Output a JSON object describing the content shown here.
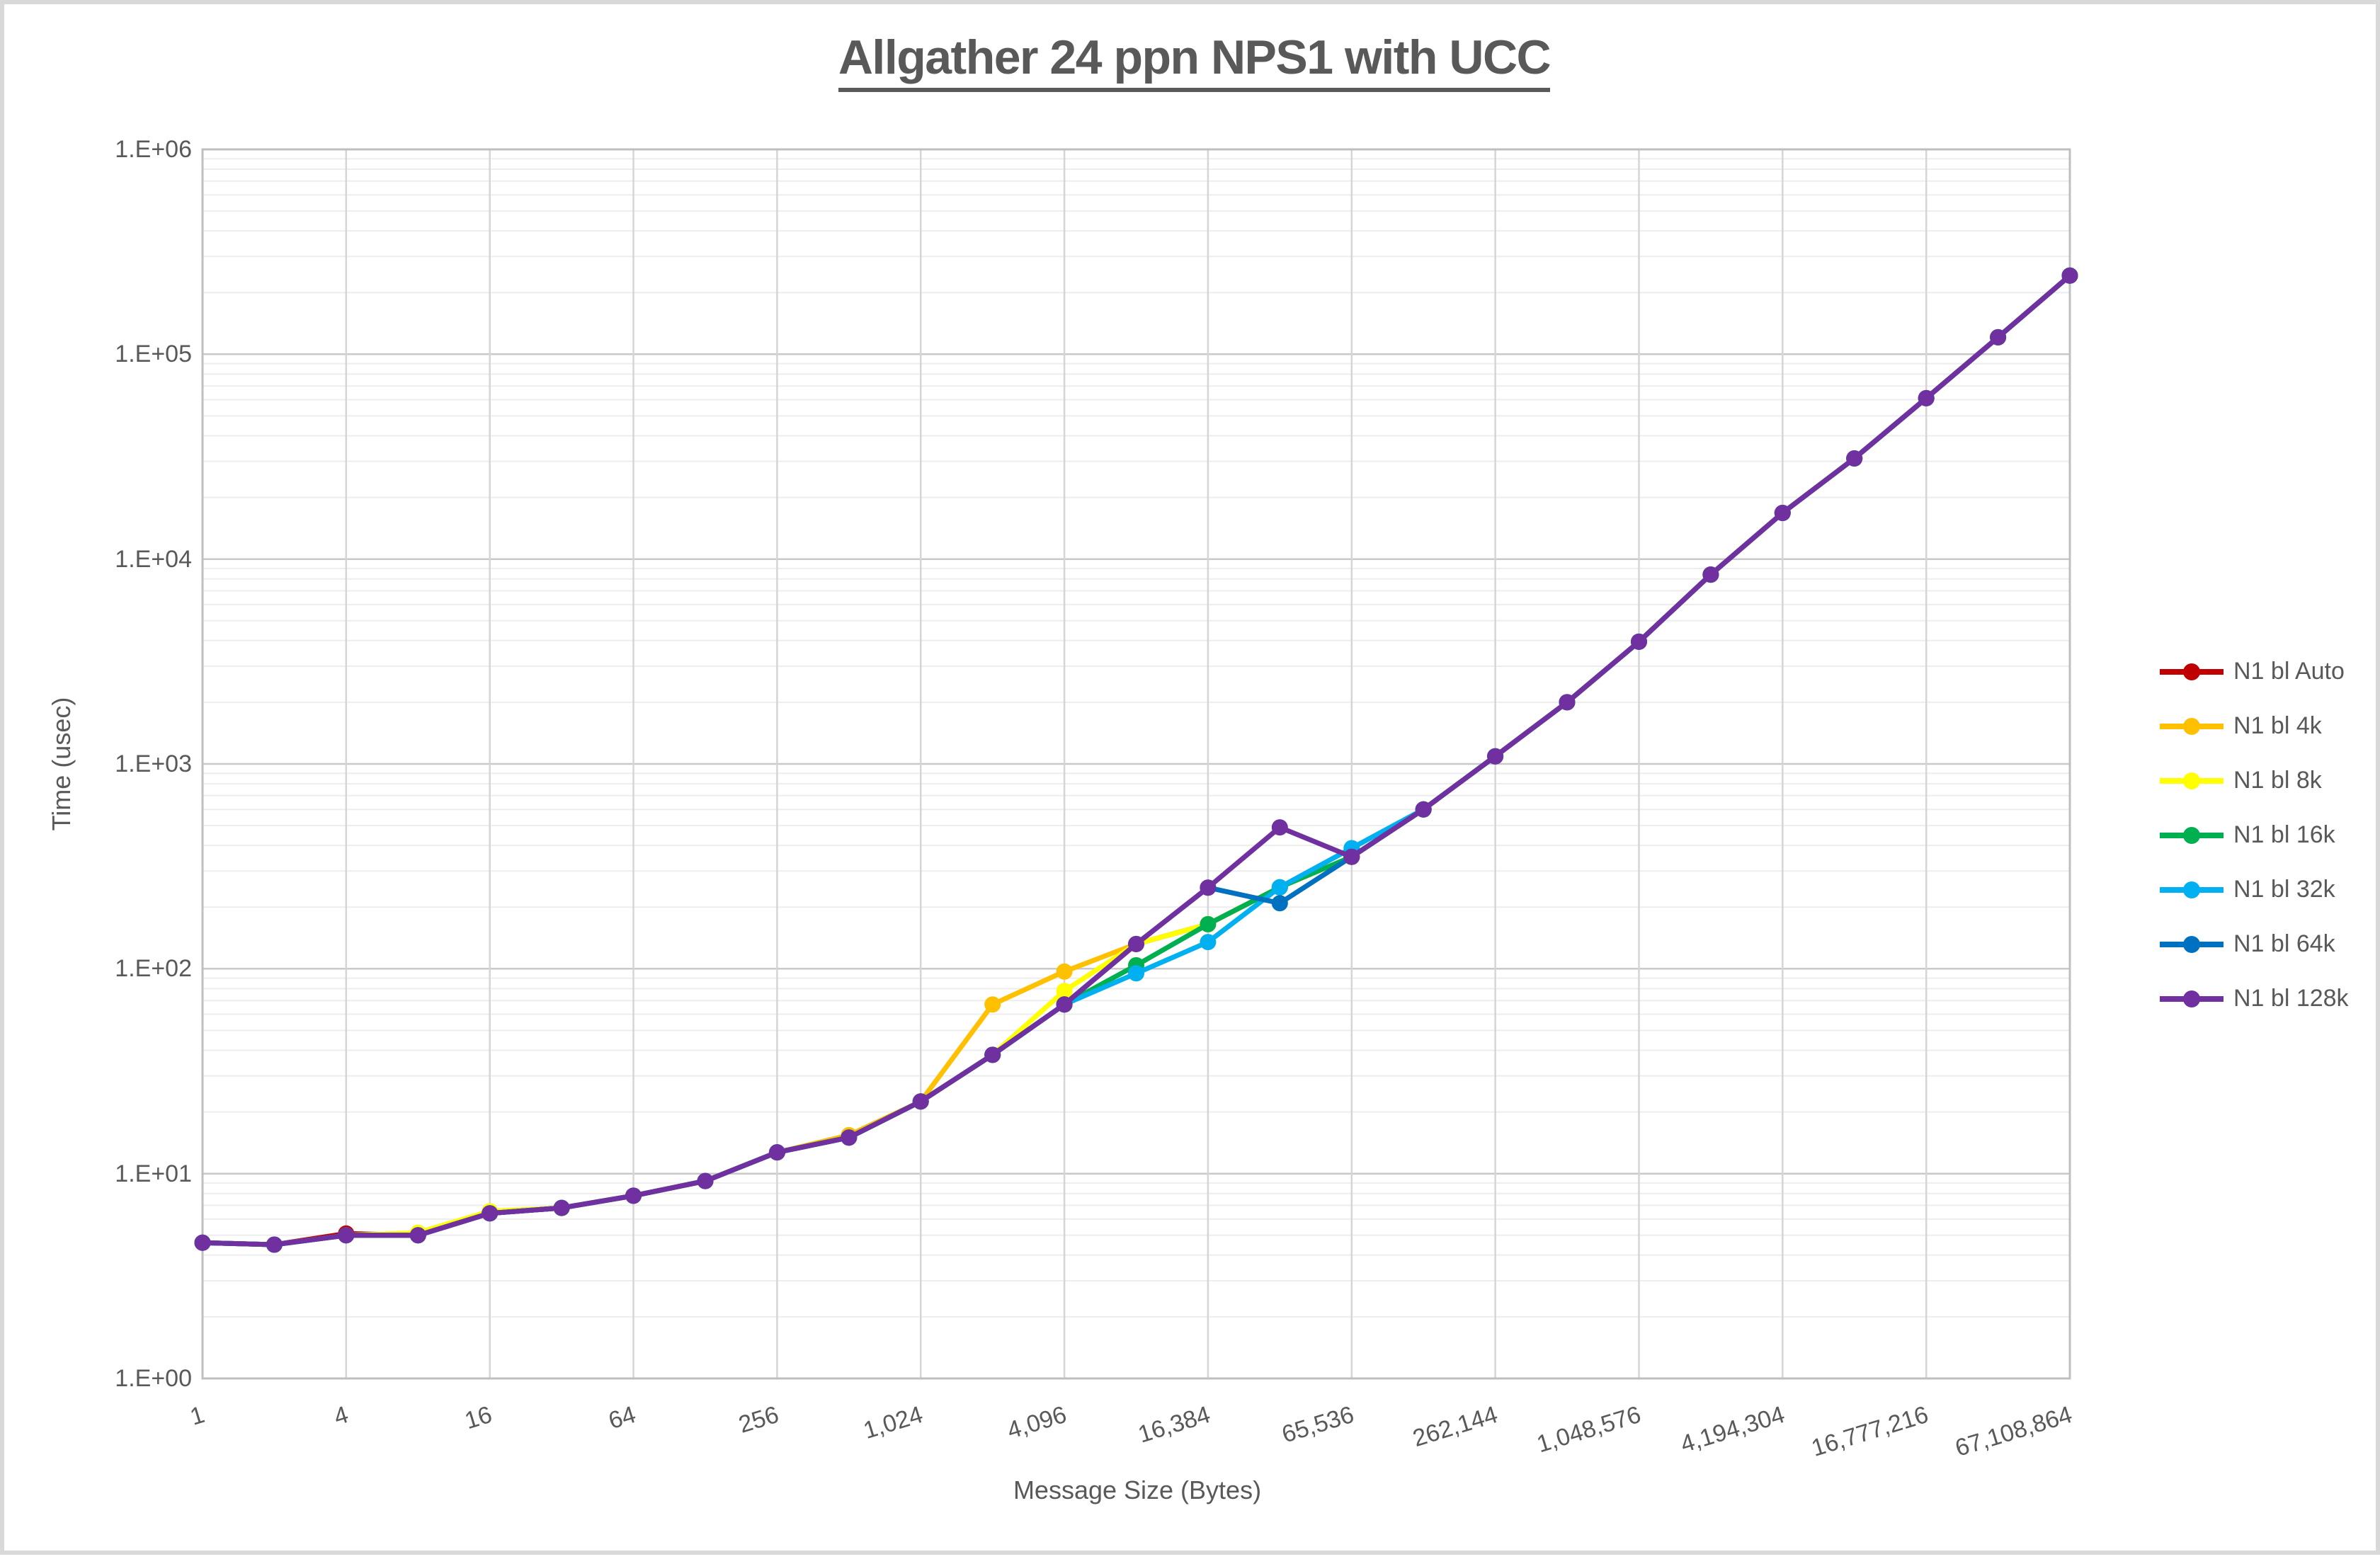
{
  "page": {
    "background": "#ffffff",
    "frame_color": "#d9d9d9",
    "text_color": "#595959"
  },
  "chart_data": {
    "type": "line",
    "title": "Allgather 24 ppn NPS1 with UCC",
    "xlabel": "Message Size (Bytes)",
    "ylabel": "Time (usec)",
    "x_scale": "log2",
    "y_scale": "log10",
    "xlim": [
      1,
      67108864
    ],
    "ylim": [
      1,
      1000000
    ],
    "grid": "horizontal major+minor, vertical at labeled ticks",
    "legend_position": "right",
    "marker": "circle",
    "text_color": "#595959",
    "gridline_major_color": "#c9c9c9",
    "gridline_minor_color": "#ededed",
    "gridline_vertical_color": "#d5d5d5",
    "axis_border_color": "#bfbfbf",
    "y_tick_labels": [
      "1.E+00",
      "1.E+01",
      "1.E+02",
      "1.E+03",
      "1.E+04",
      "1.E+05",
      "1.E+06"
    ],
    "x_tick_labels": [
      "1",
      "4",
      "16",
      "64",
      "256",
      "1,024",
      "4,096",
      "16,384",
      "65,536",
      "262,144",
      "1,048,576",
      "4,194,304",
      "16,777,216",
      "67,108,864"
    ],
    "x": [
      1,
      2,
      4,
      8,
      16,
      32,
      64,
      128,
      256,
      512,
      1024,
      2048,
      4096,
      8192,
      16384,
      32768,
      65536,
      131072,
      262144,
      524288,
      1048576,
      2097152,
      4194304,
      8388608,
      16777216,
      33554432,
      67108864
    ],
    "series": [
      {
        "name": "N1 bl Auto",
        "color": "#C00000",
        "values": [
          4.6,
          4.5,
          5.1,
          5.0,
          6.4,
          6.8,
          7.8,
          9.2,
          12.7,
          15,
          22.5,
          38,
          67,
          132,
          165,
          250,
          352,
          600,
          1090,
          2000,
          3950,
          8400,
          16800,
          31000,
          61000,
          121000,
          242000
        ]
      },
      {
        "name": "N1 bl 4k",
        "color": "#FFC000",
        "values": [
          4.6,
          4.5,
          5.0,
          5.0,
          6.4,
          6.8,
          7.8,
          9.2,
          12.7,
          15.4,
          22.5,
          67,
          97,
          132,
          165,
          250,
          352,
          600,
          1090,
          2000,
          3950,
          8400,
          16800,
          31000,
          61000,
          121000,
          242000
        ]
      },
      {
        "name": "N1 bl 8k",
        "color": "#FFFF00",
        "values": [
          4.6,
          4.5,
          5.0,
          5.15,
          6.55,
          6.8,
          7.8,
          9.2,
          12.7,
          15,
          22.5,
          38,
          78,
          132,
          165,
          250,
          352,
          600,
          1090,
          2000,
          3950,
          8400,
          16800,
          31000,
          61000,
          121000,
          242000
        ]
      },
      {
        "name": "N1 bl 16k",
        "color": "#00B050",
        "values": [
          4.6,
          4.5,
          5.0,
          5.0,
          6.4,
          6.8,
          7.8,
          9.2,
          12.7,
          15,
          22.5,
          38,
          67,
          104,
          165,
          250,
          352,
          600,
          1090,
          2000,
          3950,
          8400,
          16800,
          31000,
          61000,
          121000,
          242000
        ]
      },
      {
        "name": "N1 bl 32k",
        "color": "#00B0F0",
        "values": [
          4.6,
          4.5,
          5.0,
          5.0,
          6.4,
          6.8,
          7.8,
          9.2,
          12.7,
          15,
          22.5,
          38,
          67,
          95,
          135,
          250,
          388,
          600,
          1090,
          2000,
          3950,
          8400,
          16800,
          31000,
          61000,
          121000,
          242000
        ]
      },
      {
        "name": "N1 bl 64k",
        "color": "#0070C0",
        "values": [
          4.6,
          4.5,
          5.0,
          5.0,
          6.4,
          6.8,
          7.8,
          9.2,
          12.7,
          15,
          22.5,
          38,
          67,
          132,
          249,
          209,
          352,
          600,
          1090,
          2000,
          3950,
          8400,
          16800,
          31000,
          61000,
          121000,
          242000
        ]
      },
      {
        "name": "N1 bl 128k",
        "color": "#7030A0",
        "values": [
          4.6,
          4.5,
          5.0,
          5.0,
          6.4,
          6.8,
          7.8,
          9.2,
          12.7,
          15,
          22.5,
          38,
          67,
          132,
          249,
          490,
          352,
          600,
          1090,
          2000,
          3950,
          8400,
          16800,
          31000,
          61000,
          121000,
          242000
        ]
      }
    ]
  }
}
